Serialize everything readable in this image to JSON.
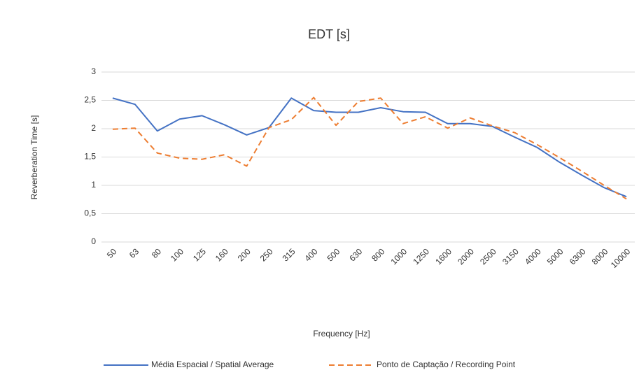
{
  "chart_data": {
    "type": "line",
    "title": "EDT [s]",
    "x_label": "Frequency [Hz]",
    "y_label": "Reverberation Time [s]",
    "categories": [
      "50",
      "63",
      "80",
      "100",
      "125",
      "160",
      "200",
      "250",
      "315",
      "400",
      "500",
      "630",
      "800",
      "1000",
      "1250",
      "1600",
      "2000",
      "2500",
      "3150",
      "4000",
      "5000",
      "6300",
      "8000",
      "10000"
    ],
    "series": [
      {
        "name": "Média Espacial / Spatial Average",
        "color": "#4472c4",
        "dash": "solid",
        "values": [
          2.54,
          2.43,
          1.96,
          2.17,
          2.23,
          2.07,
          1.89,
          2.02,
          2.54,
          2.32,
          2.29,
          2.29,
          2.37,
          2.3,
          2.29,
          2.09,
          2.09,
          2.04,
          1.85,
          1.67,
          1.41,
          1.18,
          0.96,
          0.8
        ]
      },
      {
        "name": "Ponto de Captação / Recording Point",
        "color": "#ed7d31",
        "dash": "dashed",
        "values": [
          1.99,
          2.01,
          1.57,
          1.48,
          1.46,
          1.54,
          1.34,
          2.02,
          2.16,
          2.55,
          2.06,
          2.48,
          2.54,
          2.09,
          2.21,
          2.01,
          2.19,
          2.05,
          1.93,
          1.72,
          1.49,
          1.25,
          1.0,
          0.76
        ]
      }
    ],
    "ylim": [
      0,
      3
    ],
    "yticks": [
      0,
      {
        "value": 0.5,
        "label": "0,5"
      },
      1,
      {
        "value": 1.5,
        "label": "1,5"
      },
      2,
      {
        "value": 2.5,
        "label": "2,5"
      },
      3
    ],
    "grid": true,
    "legend": "bottom"
  }
}
